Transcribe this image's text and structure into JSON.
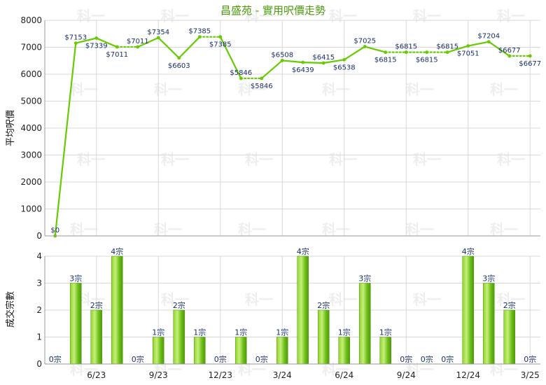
{
  "chart_data": [
    {
      "type": "line",
      "title": "昌盛苑 - 實用呎價走勢",
      "ylabel": "平均呎價",
      "ylim": [
        0,
        8000
      ],
      "yticks": [
        "0",
        "1000",
        "2000",
        "3000",
        "4000",
        "5000",
        "6000",
        "7000",
        "8000"
      ],
      "grid": true,
      "color": "#66cc00",
      "watermark": "科一",
      "points": [
        {
          "label": "$0",
          "value": 0
        },
        {
          "label": "$7153",
          "value": 7153
        },
        {
          "label": "$7339",
          "value": 7339
        },
        {
          "label": "$7011",
          "value": 7011
        },
        {
          "label": "$7011",
          "value": 7011
        },
        {
          "label": "$7354",
          "value": 7354
        },
        {
          "label": "$6603",
          "value": 6603
        },
        {
          "label": "$7385",
          "value": 7385
        },
        {
          "label": "$7385",
          "value": 7385
        },
        {
          "label": "$5846",
          "value": 5846
        },
        {
          "label": "$5846",
          "value": 5846
        },
        {
          "label": "$6508",
          "value": 6508
        },
        {
          "label": "$6439",
          "value": 6439
        },
        {
          "label": "$6415",
          "value": 6415
        },
        {
          "label": "$6538",
          "value": 6538
        },
        {
          "label": "$7025",
          "value": 7025
        },
        {
          "label": "$6815",
          "value": 6815
        },
        {
          "label": "$6815",
          "value": 6815
        },
        {
          "label": "$6815",
          "value": 6815
        },
        {
          "label": "$6815",
          "value": 6815
        },
        {
          "label": "$7051",
          "value": 7051
        },
        {
          "label": "$7204",
          "value": 7204
        },
        {
          "label": "$6677",
          "value": 6677
        },
        {
          "label": "$6677",
          "value": 6677
        }
      ],
      "dotted_segments_after_index": [
        3,
        7,
        9,
        16,
        17,
        18,
        22
      ]
    },
    {
      "type": "bar",
      "ylabel": "成交宗數",
      "ylim": [
        0,
        4
      ],
      "yticks": [
        "0",
        "1",
        "2",
        "3",
        "4"
      ],
      "grid": true,
      "color": "#66cc00",
      "x_tick_labels": [
        "6/23",
        "9/23",
        "12/23",
        "3/24",
        "6/24",
        "9/24",
        "12/24",
        "3/25"
      ],
      "values": [
        0,
        3,
        2,
        4,
        0,
        1,
        2,
        1,
        0,
        1,
        0,
        1,
        4,
        2,
        1,
        3,
        1,
        0,
        0,
        0,
        4,
        3,
        2,
        0
      ],
      "labels": [
        "0宗",
        "3宗",
        "2宗",
        "4宗",
        "0宗",
        "1宗",
        "2宗",
        "1宗",
        "0宗",
        "1宗",
        "0宗",
        "1宗",
        "4宗",
        "2宗",
        "1宗",
        "3宗",
        "1宗",
        "0宗",
        "0宗",
        "0宗",
        "4宗",
        "3宗",
        "2宗",
        "0宗"
      ]
    }
  ]
}
